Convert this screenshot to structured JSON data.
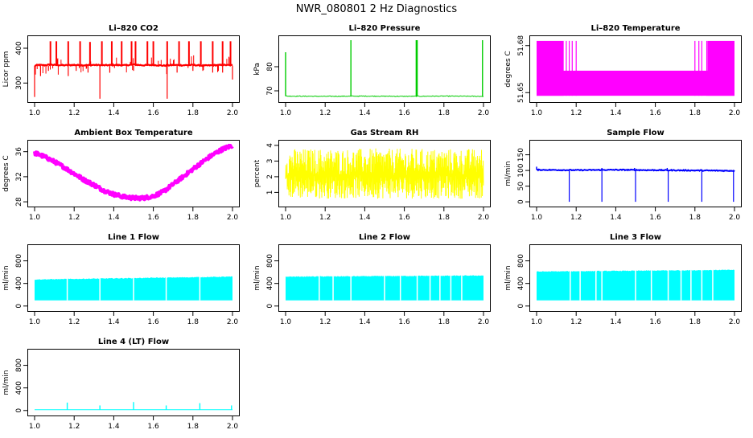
{
  "figure_title": "NWR_080801  2 Hz Diagnostics",
  "colors": {
    "red": "#ff0000",
    "green": "#00cc00",
    "magenta": "#ff00ff",
    "yellow": "#ffff00",
    "blue": "#0000ff",
    "cyan": "#00ffff"
  },
  "chart_data": [
    {
      "type": "line",
      "title": "Li–820 CO2",
      "ylabel": "Licor ppm",
      "color": "red",
      "xlim": [
        1.0,
        2.0
      ],
      "ylim": [
        250,
        430
      ],
      "x_ticks": [
        "1.0",
        "1.2",
        "1.4",
        "1.6",
        "1.8",
        "2.0"
      ],
      "y_ticks": [
        300,
        400
      ],
      "y_tick_labels": [
        "300",
        "400"
      ],
      "series": [
        {
          "x": [
            1.0,
            1.02,
            1.05,
            1.08,
            1.1,
            1.15,
            1.2,
            1.25,
            1.3,
            1.35,
            1.4,
            1.45,
            1.5,
            1.55,
            1.6,
            1.65,
            1.7,
            1.75,
            1.8,
            1.85,
            1.9,
            1.95,
            2.0
          ],
          "y": [
            350,
            352,
            351,
            353,
            352,
            351,
            352,
            351,
            352,
            351,
            352,
            351,
            353,
            351,
            352,
            350,
            352,
            351,
            352,
            350,
            351,
            352,
            351
          ],
          "spikes_up": [
            [
              1.08,
              420
            ],
            [
              1.11,
              420
            ],
            [
              1.17,
              420
            ],
            [
              1.23,
              420
            ],
            [
              1.28,
              418
            ],
            [
              1.34,
              420
            ],
            [
              1.39,
              420
            ],
            [
              1.44,
              420
            ],
            [
              1.49,
              420
            ],
            [
              1.51,
              420
            ],
            [
              1.57,
              420
            ],
            [
              1.6,
              420
            ],
            [
              1.67,
              420
            ],
            [
              1.73,
              420
            ],
            [
              1.78,
              420
            ],
            [
              1.84,
              420
            ],
            [
              1.9,
              420
            ],
            [
              1.95,
              420
            ],
            [
              1.99,
              420
            ]
          ],
          "spikes_down": [
            [
              1.0,
              260
            ],
            [
              1.03,
              320
            ],
            [
              1.07,
              335
            ],
            [
              1.17,
              320
            ],
            [
              1.21,
              335
            ],
            [
              1.27,
              330
            ],
            [
              1.33,
              255
            ],
            [
              1.38,
              330
            ],
            [
              1.5,
              335
            ],
            [
              1.67,
              255
            ],
            [
              1.72,
              330
            ],
            [
              1.8,
              335
            ],
            [
              1.85,
              335
            ],
            [
              1.9,
              330
            ],
            [
              1.95,
              330
            ],
            [
              2.0,
              310
            ]
          ]
        }
      ]
    },
    {
      "type": "line",
      "title": "Li–820 Pressure",
      "ylabel": "kPa",
      "color": "green",
      "xlim": [
        1.0,
        2.0
      ],
      "ylim": [
        66,
        92
      ],
      "x_ticks": [
        "1.0",
        "1.2",
        "1.4",
        "1.6",
        "1.8",
        "2.0"
      ],
      "y_ticks": [
        70,
        80
      ],
      "y_tick_labels": [
        "70",
        "80"
      ],
      "series": [
        {
          "x": [
            1.0,
            1.2,
            1.4,
            1.6,
            1.8,
            2.0
          ],
          "y": [
            67.8,
            67.7,
            67.8,
            67.7,
            67.8,
            67.7
          ],
          "spikes_up": [
            [
              1.0,
              86
            ],
            [
              1.33,
              91
            ],
            [
              1.66,
              91
            ],
            [
              1.665,
              91
            ],
            [
              1.995,
              91
            ]
          ],
          "spikes_down": []
        }
      ]
    },
    {
      "type": "line",
      "title": "Li–820 Temperature",
      "ylabel": "degrees C",
      "color": "magenta",
      "xlim": [
        1.0,
        2.0
      ],
      "ylim": [
        51.645,
        51.685
      ],
      "x_ticks": [
        "1.0",
        "1.2",
        "1.4",
        "1.6",
        "1.8",
        "2.0"
      ],
      "y_ticks": [
        51.65,
        51.68
      ],
      "y_tick_labels": [
        "51.65",
        "51.68"
      ],
      "series": [
        {
          "band_low": 51.648,
          "band_high_edges": 51.683,
          "band_high_mid": 51.664,
          "edge_region": [
            [
              1.0,
              1.21
            ],
            [
              1.79,
              2.0
            ]
          ]
        }
      ]
    },
    {
      "type": "line",
      "title": "Ambient Box Temperature",
      "ylabel": "degrees C",
      "color": "magenta",
      "xlim": [
        1.0,
        2.0
      ],
      "ylim": [
        27.5,
        37.5
      ],
      "x_ticks": [
        "1.0",
        "1.2",
        "1.4",
        "1.6",
        "1.8",
        "2.0"
      ],
      "y_ticks": [
        28,
        32,
        36
      ],
      "y_tick_labels": [
        "28",
        "32",
        "36"
      ],
      "series": [
        {
          "x": [
            1.0,
            1.05,
            1.1,
            1.15,
            1.2,
            1.25,
            1.3,
            1.35,
            1.4,
            1.45,
            1.5,
            1.55,
            1.6,
            1.65,
            1.7,
            1.75,
            1.8,
            1.85,
            1.9,
            1.95,
            2.0
          ],
          "y": [
            35.8,
            35.2,
            34.4,
            33.5,
            32.5,
            31.5,
            30.7,
            29.8,
            29.2,
            28.8,
            28.6,
            28.6,
            28.9,
            29.6,
            30.8,
            32.0,
            33.2,
            34.4,
            35.5,
            36.4,
            37.0
          ],
          "noise": 0.3
        }
      ]
    },
    {
      "type": "line",
      "title": "Gas Stream RH",
      "ylabel": "percent",
      "color": "yellow",
      "xlim": [
        1.0,
        2.0
      ],
      "ylim": [
        0.2,
        4.2
      ],
      "x_ticks": [
        "1.0",
        "1.2",
        "1.4",
        "1.6",
        "1.8",
        "2.0"
      ],
      "y_ticks": [
        1,
        2,
        3,
        4
      ],
      "y_tick_labels": [
        "1",
        "2",
        "3",
        "4"
      ],
      "series": [
        {
          "center": 2.1,
          "low": 0.6,
          "high": 3.8
        }
      ]
    },
    {
      "type": "line",
      "title": "Sample Flow",
      "ylabel": "ml/min",
      "color": "blue",
      "xlim": [
        1.0,
        2.0
      ],
      "ylim": [
        -10,
        190
      ],
      "x_ticks": [
        "1.0",
        "1.2",
        "1.4",
        "1.6",
        "1.8",
        "2.0"
      ],
      "y_ticks": [
        0,
        50,
        100,
        150
      ],
      "y_tick_labels": [
        "0",
        "50",
        "100",
        "150"
      ],
      "series": [
        {
          "x": [
            1.0,
            1.2,
            1.4,
            1.6,
            1.8,
            2.0
          ],
          "y": [
            102,
            101,
            102,
            101,
            100,
            99
          ],
          "spikes_down": [
            [
              1.165,
              0
            ],
            [
              1.33,
              0
            ],
            [
              1.5,
              0
            ],
            [
              1.665,
              0
            ],
            [
              1.835,
              0
            ],
            [
              1.995,
              0
            ]
          ],
          "spikes_up": [
            [
              1.0,
              112
            ],
            [
              1.33,
              108
            ],
            [
              1.495,
              108
            ],
            [
              1.66,
              108
            ],
            [
              1.83,
              104
            ]
          ]
        }
      ]
    },
    {
      "type": "area",
      "title": "Line 1 Flow",
      "ylabel": "ml/min",
      "color": "cyan",
      "xlim": [
        1.0,
        2.0
      ],
      "ylim": [
        -60,
        1050
      ],
      "x_ticks": [
        "1.0",
        "1.2",
        "1.4",
        "1.6",
        "1.8",
        "2.0"
      ],
      "y_ticks": [
        0,
        400,
        800
      ],
      "y_tick_labels": [
        "0",
        "400",
        "800"
      ],
      "series": [
        {
          "low": 100,
          "high_start": 470,
          "high_end": 520,
          "gaps": [
            1.165,
            1.33,
            1.5,
            1.665,
            1.835
          ]
        }
      ]
    },
    {
      "type": "area",
      "title": "Line 2 Flow",
      "ylabel": "ml/min",
      "color": "cyan",
      "xlim": [
        1.0,
        2.0
      ],
      "ylim": [
        -60,
        1050
      ],
      "x_ticks": [
        "1.0",
        "1.2",
        "1.4",
        "1.6",
        "1.8",
        "2.0"
      ],
      "y_ticks": [
        0,
        400,
        800
      ],
      "y_tick_labels": [
        "0",
        "400",
        "800"
      ],
      "series": [
        {
          "low": 100,
          "high_start": 520,
          "high_end": 540,
          "gaps": [
            1.17,
            1.24,
            1.33,
            1.5,
            1.58,
            1.665,
            1.73,
            1.78,
            1.835,
            1.89
          ]
        }
      ]
    },
    {
      "type": "area",
      "title": "Line 3 Flow",
      "ylabel": "ml/min",
      "color": "cyan",
      "xlim": [
        1.0,
        2.0
      ],
      "ylim": [
        -60,
        1050
      ],
      "x_ticks": [
        "1.0",
        "1.2",
        "1.4",
        "1.6",
        "1.8",
        "2.0"
      ],
      "y_ticks": [
        0,
        400,
        800
      ],
      "y_tick_labels": [
        "0",
        "400",
        "800"
      ],
      "series": [
        {
          "low": 100,
          "high_start": 610,
          "high_end": 640,
          "gaps": [
            1.17,
            1.22,
            1.3,
            1.33,
            1.5,
            1.58,
            1.665,
            1.73,
            1.78,
            1.835,
            1.89
          ]
        }
      ]
    },
    {
      "type": "line",
      "title": "Line 4 (LT) Flow",
      "ylabel": "ml/min",
      "color": "cyan",
      "xlim": [
        1.0,
        2.0
      ],
      "ylim": [
        -60,
        1050
      ],
      "x_ticks": [
        "1.0",
        "1.2",
        "1.4",
        "1.6",
        "1.8",
        "2.0"
      ],
      "y_ticks": [
        0,
        400,
        800
      ],
      "y_tick_labels": [
        "0",
        "400",
        "800"
      ],
      "series": [
        {
          "x": [
            1.0,
            2.0
          ],
          "y": [
            15,
            15
          ],
          "spikes_up": [
            [
              1.165,
              140
            ],
            [
              1.33,
              90
            ],
            [
              1.5,
              150
            ],
            [
              1.665,
              90
            ],
            [
              1.835,
              130
            ],
            [
              1.995,
              90
            ]
          ]
        }
      ]
    }
  ]
}
